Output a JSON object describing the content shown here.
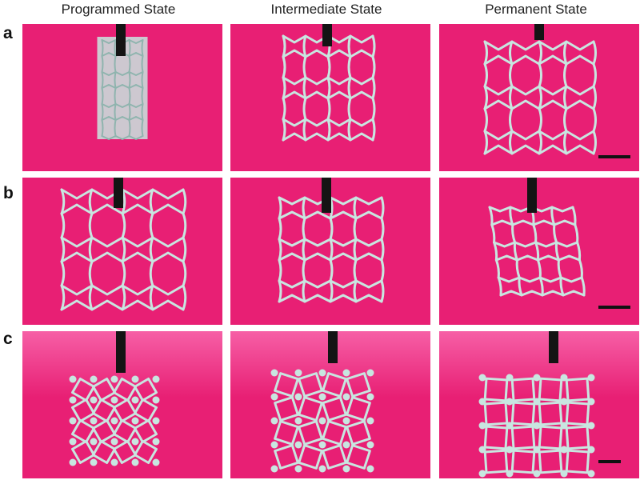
{
  "figure": {
    "columns": [
      "Programmed State",
      "Intermediate State",
      "Permanent State"
    ],
    "rows": [
      "a",
      "b",
      "c"
    ]
  },
  "colors": {
    "background": "#e81f74",
    "background_light": "#f65fa6",
    "lattice": "#c8e6e0",
    "clamp": "#141414",
    "scale_bar": "#111111"
  },
  "panels": [
    {
      "row": "a",
      "state": "Programmed State",
      "lattice": "compressed-auxetic"
    },
    {
      "row": "a",
      "state": "Intermediate State",
      "lattice": "reentrant-honeycomb"
    },
    {
      "row": "a",
      "state": "Permanent State",
      "lattice": "reentrant-honeycomb",
      "scale_bar": true
    },
    {
      "row": "b",
      "state": "Programmed State",
      "lattice": "reentrant-honeycomb"
    },
    {
      "row": "b",
      "state": "Intermediate State",
      "lattice": "reentrant-honeycomb"
    },
    {
      "row": "b",
      "state": "Permanent State",
      "lattice": "sheared-reentrant",
      "scale_bar": true
    },
    {
      "row": "c",
      "state": "Programmed State",
      "lattice": "rotating-squares"
    },
    {
      "row": "c",
      "state": "Intermediate State",
      "lattice": "rotating-squares"
    },
    {
      "row": "c",
      "state": "Permanent State",
      "lattice": "rotating-squares",
      "scale_bar": true
    }
  ]
}
